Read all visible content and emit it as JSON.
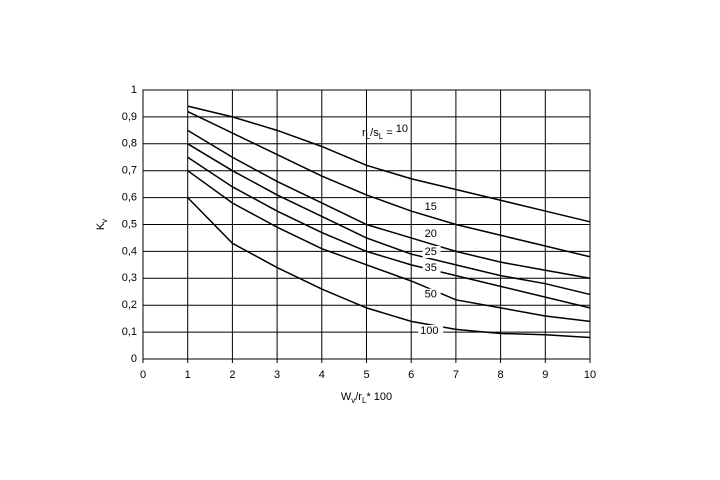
{
  "chart_data": {
    "type": "line",
    "xlabel": [
      "W",
      "v",
      "/r",
      "L",
      "* 100"
    ],
    "ylabel": [
      "K",
      "v"
    ],
    "label_prefix": [
      "r",
      "L",
      "/s",
      "L",
      " = "
    ],
    "x": [
      1,
      2,
      3,
      4,
      5,
      6,
      7,
      8,
      9,
      10
    ],
    "series": [
      {
        "name": "10",
        "color": "#000000",
        "values": [
          0.94,
          0.9,
          0.85,
          0.79,
          0.72,
          0.67,
          0.63,
          0.59,
          0.55,
          0.51
        ]
      },
      {
        "name": "15",
        "color": "#000000",
        "values": [
          0.92,
          0.84,
          0.76,
          0.68,
          0.61,
          0.55,
          0.5,
          0.46,
          0.42,
          0.38
        ]
      },
      {
        "name": "20",
        "color": "#000000",
        "values": [
          0.85,
          0.75,
          0.66,
          0.58,
          0.5,
          0.45,
          0.4,
          0.36,
          0.33,
          0.3
        ]
      },
      {
        "name": "25",
        "color": "#000000",
        "values": [
          0.8,
          0.7,
          0.61,
          0.53,
          0.45,
          0.39,
          0.35,
          0.31,
          0.28,
          0.24
        ]
      },
      {
        "name": "35",
        "color": "#000000",
        "values": [
          0.75,
          0.64,
          0.55,
          0.47,
          0.4,
          0.35,
          0.31,
          0.27,
          0.23,
          0.19
        ]
      },
      {
        "name": "50",
        "color": "#000000",
        "values": [
          0.7,
          0.58,
          0.49,
          0.41,
          0.35,
          0.29,
          0.22,
          0.19,
          0.16,
          0.14
        ]
      },
      {
        "name": "100",
        "color": "#000000",
        "values": [
          0.6,
          0.43,
          0.34,
          0.26,
          0.19,
          0.14,
          0.11,
          0.095,
          0.09,
          0.08
        ]
      }
    ],
    "xlim": [
      0,
      10
    ],
    "xticks": [
      0,
      1,
      2,
      3,
      4,
      5,
      6,
      7,
      8,
      9,
      10
    ],
    "ylim": [
      0,
      1
    ],
    "yticks": [
      0,
      {
        "value": 0.1,
        "label": "0,1"
      },
      {
        "value": 0.2,
        "label": "0,2"
      },
      {
        "value": 0.3,
        "label": "0,3"
      },
      {
        "value": 0.4,
        "label": "0,4"
      },
      {
        "value": 0.5,
        "label": "0,5"
      },
      {
        "value": 0.6,
        "label": "0,6"
      },
      {
        "value": 0.7,
        "label": "0,7"
      },
      {
        "value": 0.8,
        "label": "0,8"
      },
      {
        "value": 0.9,
        "label": "0,9"
      },
      1
    ],
    "grid": true
  }
}
